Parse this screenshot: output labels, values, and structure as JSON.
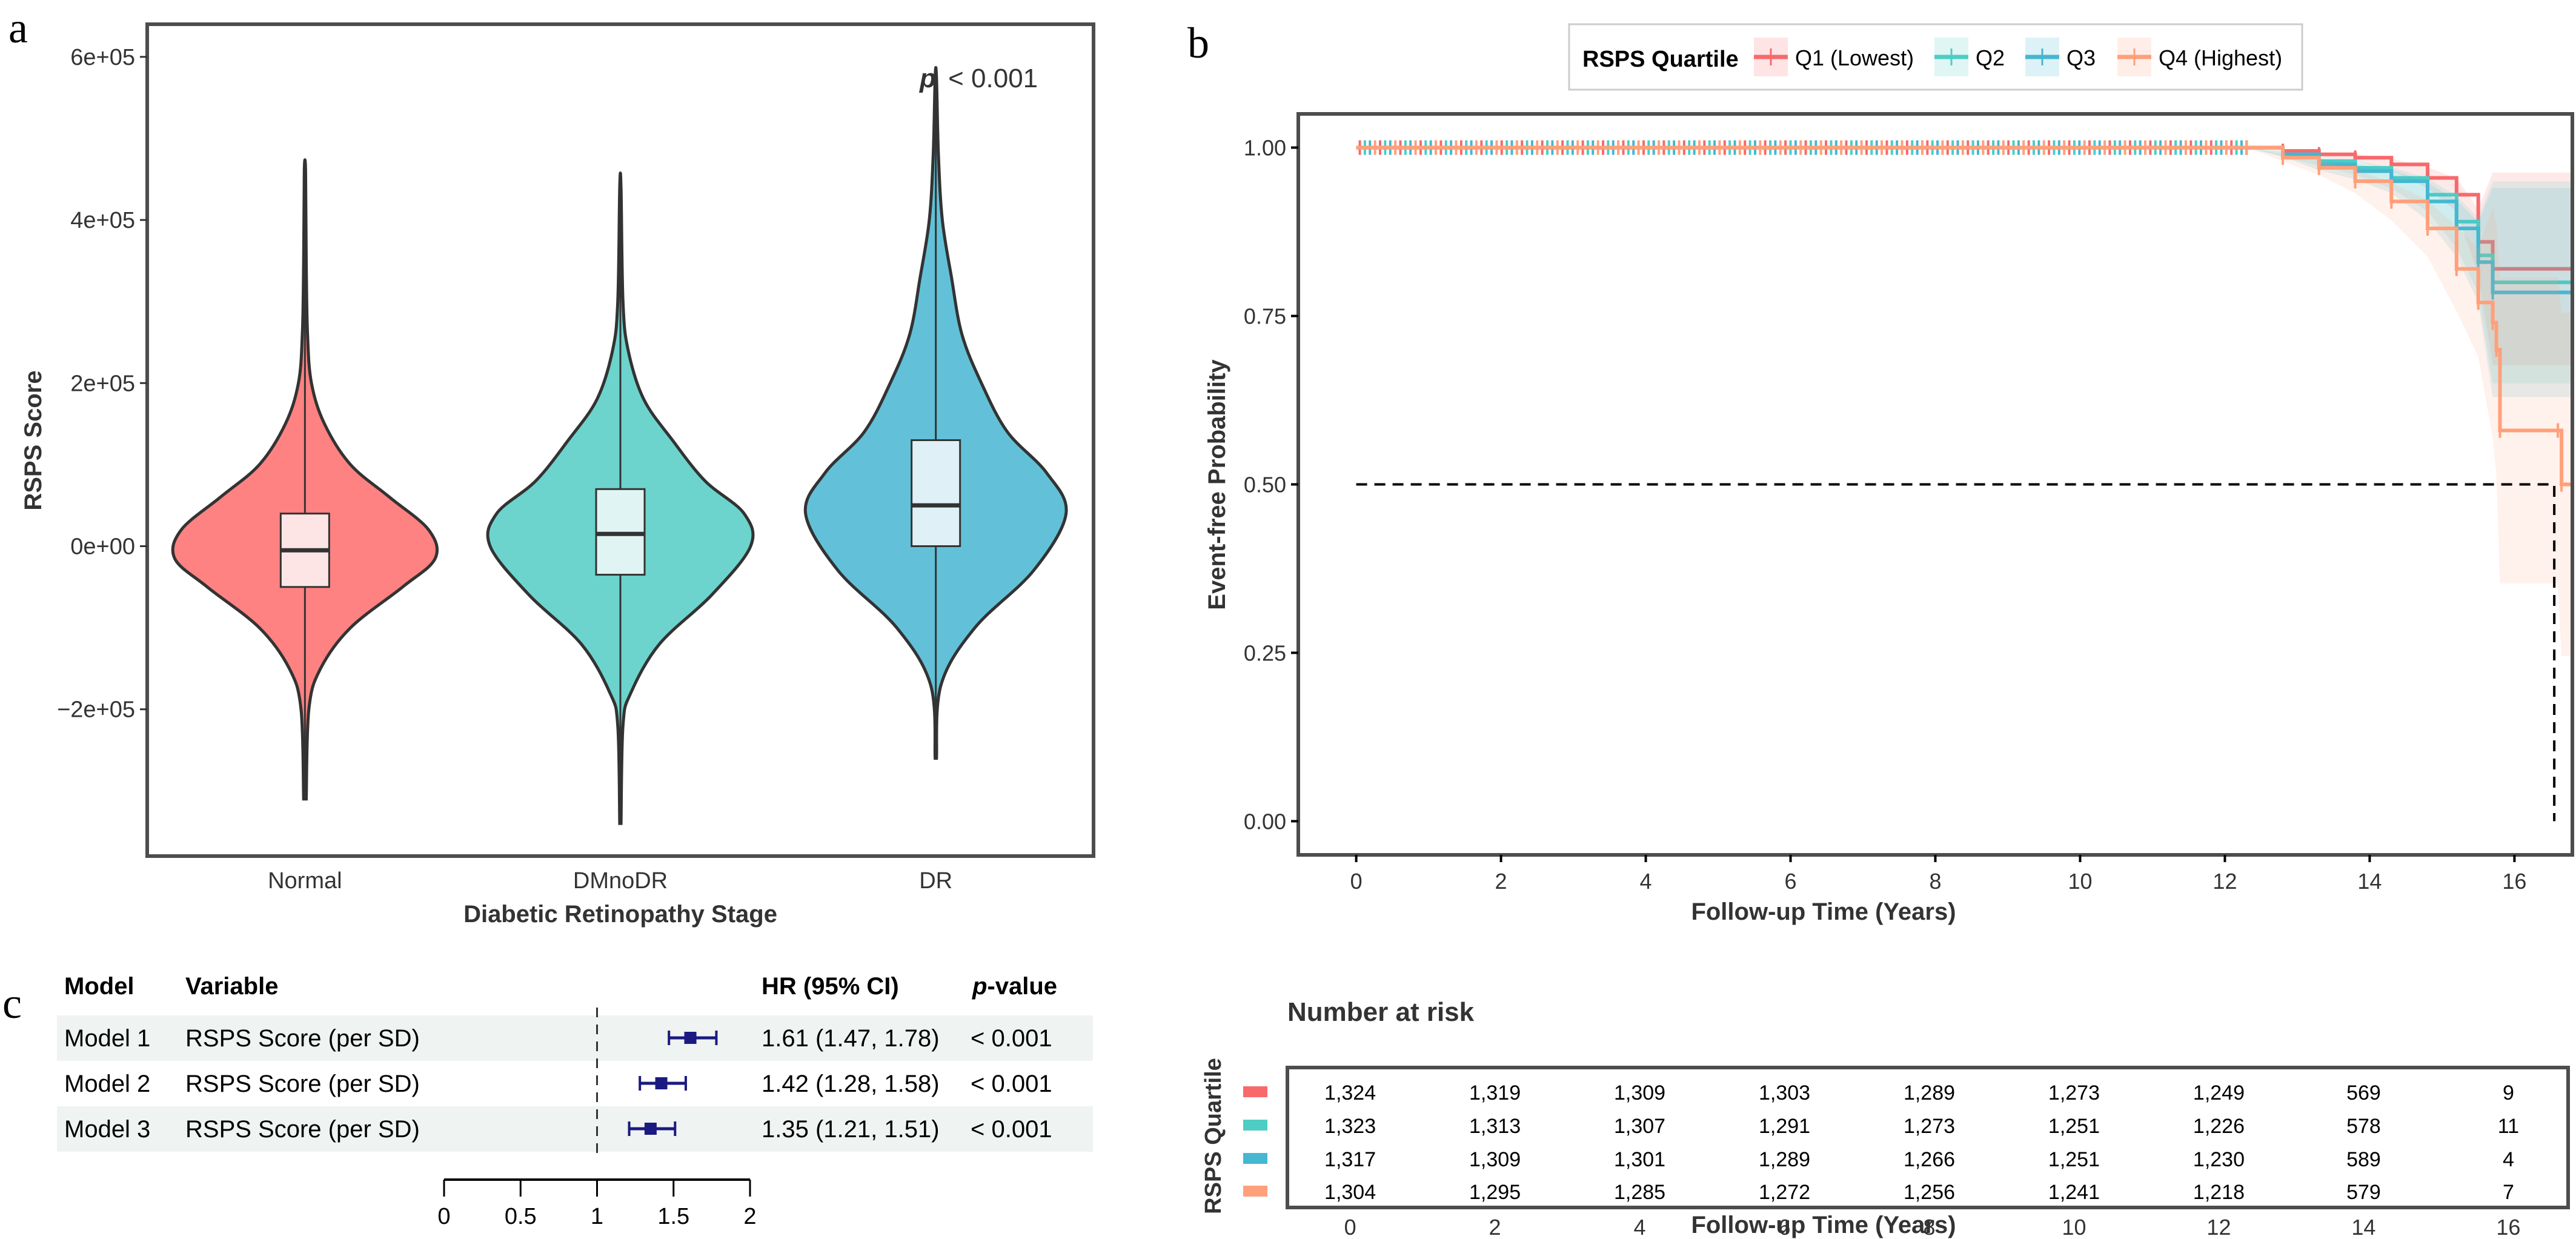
{
  "panel_labels": {
    "a": "a",
    "b": "b",
    "c": "c"
  },
  "chart_data": [
    {
      "panel": "a",
      "type": "violin",
      "title": "",
      "xlabel": "Diabetic Retinopathy Stage",
      "ylabel": "RSPS Score",
      "annotation": {
        "p_symbol": "p",
        "p_text": "< 0.001"
      },
      "ylim": [
        -380000,
        640000
      ],
      "yticks": [
        -200000,
        0,
        200000,
        400000,
        600000
      ],
      "ytick_labels": [
        "−2e+05",
        "0e+00",
        "2e+05",
        "4e+05",
        "6e+05"
      ],
      "categories": [
        "Normal",
        "DMnoDR",
        "DR"
      ],
      "colors": [
        "#F8766D",
        "#4ECDC4",
        "#45B7D1"
      ],
      "fill_colors": [
        "#FF8282",
        "#6CD4CC",
        "#62C1D8"
      ],
      "box_fill": [
        "#FDE5E5",
        "#E0F5F3",
        "#DFF1F7"
      ],
      "series": [
        {
          "name": "Normal",
          "min": -310000,
          "whisker_low": -105000,
          "q1": -50000,
          "median": -5000,
          "q3": 40000,
          "whisker_high": 180000,
          "max": 460000,
          "density": [
            [
              -310000,
              0.01
            ],
            [
              -200000,
              0.03
            ],
            [
              -150000,
              0.12
            ],
            [
              -100000,
              0.35
            ],
            [
              -50000,
              0.75
            ],
            [
              -15000,
              1.0
            ],
            [
              20000,
              0.95
            ],
            [
              60000,
              0.65
            ],
            [
              100000,
              0.35
            ],
            [
              150000,
              0.15
            ],
            [
              200000,
              0.05
            ],
            [
              260000,
              0.02
            ],
            [
              350000,
              0.01
            ],
            [
              460000,
              0.005
            ]
          ]
        },
        {
          "name": "DMnoDR",
          "min": -340000,
          "whisker_low": -195000,
          "q1": -35000,
          "median": 15000,
          "q3": 70000,
          "whisker_high": 230000,
          "max": 440000,
          "density": [
            [
              -340000,
              0.005
            ],
            [
              -220000,
              0.02
            ],
            [
              -180000,
              0.08
            ],
            [
              -120000,
              0.3
            ],
            [
              -60000,
              0.7
            ],
            [
              0,
              1.0
            ],
            [
              40000,
              0.95
            ],
            [
              80000,
              0.65
            ],
            [
              130000,
              0.4
            ],
            [
              180000,
              0.18
            ],
            [
              240000,
              0.06
            ],
            [
              300000,
              0.02
            ],
            [
              440000,
              0.005
            ]
          ]
        },
        {
          "name": "DR",
          "min": -260000,
          "whisker_low": -145000,
          "q1": 0,
          "median": 50000,
          "q3": 130000,
          "whisker_high": 330000,
          "max": 575000,
          "density": [
            [
              -260000,
              0.005
            ],
            [
              -170000,
              0.04
            ],
            [
              -100000,
              0.3
            ],
            [
              -30000,
              0.75
            ],
            [
              40000,
              1.0
            ],
            [
              90000,
              0.85
            ],
            [
              140000,
              0.55
            ],
            [
              200000,
              0.35
            ],
            [
              260000,
              0.2
            ],
            [
              330000,
              0.12
            ],
            [
              400000,
              0.05
            ],
            [
              480000,
              0.02
            ],
            [
              575000,
              0.005
            ]
          ]
        }
      ]
    },
    {
      "panel": "b",
      "type": "line",
      "subtype": "kaplan-meier",
      "xlabel": "Follow-up Time (Years)",
      "ylabel": "Event-free Probability",
      "xlim": [
        -0.8,
        16.8
      ],
      "ylim": [
        -0.05,
        1.05
      ],
      "xticks": [
        0,
        2,
        4,
        6,
        8,
        10,
        12,
        14,
        16
      ],
      "yticks": [
        0.0,
        0.25,
        0.5,
        0.75,
        1.0
      ],
      "ytick_labels": [
        "0.00",
        "0.25",
        "0.50",
        "0.75",
        "1.00"
      ],
      "legend": {
        "title": "RSPS Quartile",
        "position": "top"
      },
      "median_line": {
        "y": 0.5,
        "x": 16.55
      },
      "series": [
        {
          "name": "Q1 (Lowest)",
          "color": "#F8696B",
          "x": [
            0,
            12.3,
            12.8,
            13.3,
            13.8,
            14.3,
            14.8,
            15.2,
            15.5,
            15.7,
            16.8
          ],
          "y": [
            1.0,
            1.0,
            0.995,
            0.99,
            0.985,
            0.975,
            0.955,
            0.93,
            0.86,
            0.82,
            0.82
          ]
        },
        {
          "name": "Q2",
          "color": "#4ECDC4",
          "x": [
            0,
            12.3,
            12.8,
            13.3,
            13.8,
            14.3,
            14.8,
            15.2,
            15.5,
            15.7,
            16.8
          ],
          "y": [
            1.0,
            1.0,
            0.99,
            0.98,
            0.97,
            0.955,
            0.93,
            0.89,
            0.84,
            0.8,
            0.8
          ]
        },
        {
          "name": "Q3",
          "color": "#45B7D1",
          "x": [
            0,
            12.3,
            12.8,
            13.3,
            13.8,
            14.3,
            14.8,
            15.2,
            15.5,
            15.7,
            16.8
          ],
          "y": [
            1.0,
            1.0,
            0.99,
            0.975,
            0.965,
            0.95,
            0.92,
            0.88,
            0.83,
            0.785,
            0.785
          ]
        },
        {
          "name": "Q4 (Highest)",
          "color": "#FFA07A",
          "x": [
            0,
            12.3,
            12.8,
            13.3,
            13.8,
            14.3,
            14.8,
            15.2,
            15.5,
            15.7,
            15.75,
            15.8,
            16.6,
            16.65,
            16.8
          ],
          "y": [
            1.0,
            1.0,
            0.985,
            0.97,
            0.95,
            0.92,
            0.88,
            0.82,
            0.77,
            0.74,
            0.7,
            0.58,
            0.58,
            0.5,
            0.5
          ]
        }
      ]
    },
    {
      "panel": "b-risk",
      "type": "table",
      "title": "Number at risk",
      "ylabel": "RSPS Quartile",
      "xlabel": "Follow-up Time (Years)",
      "times": [
        0,
        2,
        4,
        6,
        8,
        10,
        12,
        14,
        16
      ],
      "rows": [
        {
          "group": "Q1 (Lowest)",
          "color": "#F8696B",
          "values": [
            "1,324",
            "1,319",
            "1,309",
            "1,303",
            "1,289",
            "1,273",
            "1,249",
            "569",
            "9"
          ]
        },
        {
          "group": "Q2",
          "color": "#4ECDC4",
          "values": [
            "1,323",
            "1,313",
            "1,307",
            "1,291",
            "1,273",
            "1,251",
            "1,226",
            "578",
            "11"
          ]
        },
        {
          "group": "Q3",
          "color": "#45B7D1",
          "values": [
            "1,317",
            "1,309",
            "1,301",
            "1,289",
            "1,266",
            "1,251",
            "1,230",
            "589",
            "4"
          ]
        },
        {
          "group": "Q4 (Highest)",
          "color": "#FFA07A",
          "values": [
            "1,304",
            "1,295",
            "1,285",
            "1,272",
            "1,256",
            "1,241",
            "1,218",
            "579",
            "7"
          ]
        }
      ]
    },
    {
      "panel": "c",
      "type": "forest",
      "headers": {
        "model": "Model",
        "variable": "Variable",
        "hr": "HR (95% CI)",
        "p_italic": "p",
        "p_rest": "-value"
      },
      "xlim": [
        0,
        2
      ],
      "xticks": [
        0,
        0.5,
        1,
        1.5,
        2
      ],
      "xtick_labels": [
        "0",
        "0.5",
        "1",
        "1.5",
        "2"
      ],
      "reference_line": 1,
      "marker_color": "#1A1A80",
      "rows": [
        {
          "model": "Model 1",
          "variable": "RSPS Score (per SD)",
          "hr": 1.61,
          "lo": 1.47,
          "hi": 1.78,
          "hr_text": "1.61 (1.47, 1.78)",
          "p_text": "< 0.001",
          "shaded": true
        },
        {
          "model": "Model 2",
          "variable": "RSPS Score (per SD)",
          "hr": 1.42,
          "lo": 1.28,
          "hi": 1.58,
          "hr_text": "1.42 (1.28, 1.58)",
          "p_text": "< 0.001",
          "shaded": false
        },
        {
          "model": "Model 3",
          "variable": "RSPS Score (per SD)",
          "hr": 1.35,
          "lo": 1.21,
          "hi": 1.51,
          "hr_text": "1.35 (1.21, 1.51)",
          "p_text": "< 0.001",
          "shaded": true
        }
      ]
    }
  ]
}
